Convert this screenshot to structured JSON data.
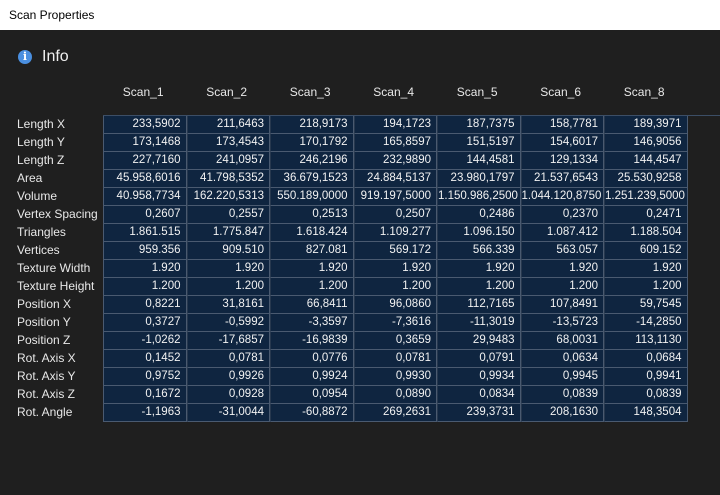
{
  "window": {
    "title": "Scan Properties"
  },
  "section": {
    "title": "Info",
    "icon": "info-icon"
  },
  "table": {
    "columns": [
      "Scan_1",
      "Scan_2",
      "Scan_3",
      "Scan_4",
      "Scan_5",
      "Scan_6",
      "Scan_8"
    ],
    "rows": [
      {
        "label": "Length X",
        "values": [
          "233,5902",
          "211,6463",
          "218,9173",
          "194,1723",
          "187,7375",
          "158,7781",
          "189,3971"
        ]
      },
      {
        "label": "Length Y",
        "values": [
          "173,1468",
          "173,4543",
          "170,1792",
          "165,8597",
          "151,5197",
          "154,6017",
          "146,9056"
        ]
      },
      {
        "label": "Length Z",
        "values": [
          "227,7160",
          "241,0957",
          "246,2196",
          "232,9890",
          "144,4581",
          "129,1334",
          "144,4547"
        ]
      },
      {
        "label": "Area",
        "values": [
          "45.958,6016",
          "41.798,5352",
          "36.679,1523",
          "24.884,5137",
          "23.980,1797",
          "21.537,6543",
          "25.530,9258"
        ]
      },
      {
        "label": "Volume",
        "values": [
          "40.958,7734",
          "162.220,5313",
          "550.189,0000",
          "919.197,5000",
          "1.150.986,2500",
          "1.044.120,8750",
          "1.251.239,5000"
        ]
      },
      {
        "label": "Vertex Spacing",
        "values": [
          "0,2607",
          "0,2557",
          "0,2513",
          "0,2507",
          "0,2486",
          "0,2370",
          "0,2471"
        ]
      },
      {
        "label": "Triangles",
        "values": [
          "1.861.515",
          "1.775.847",
          "1.618.424",
          "1.109.277",
          "1.096.150",
          "1.087.412",
          "1.188.504"
        ]
      },
      {
        "label": "Vertices",
        "values": [
          "959.356",
          "909.510",
          "827.081",
          "569.172",
          "566.339",
          "563.057",
          "609.152"
        ]
      },
      {
        "label": "Texture Width",
        "values": [
          "1.920",
          "1.920",
          "1.920",
          "1.920",
          "1.920",
          "1.920",
          "1.920"
        ]
      },
      {
        "label": "Texture Height",
        "values": [
          "1.200",
          "1.200",
          "1.200",
          "1.200",
          "1.200",
          "1.200",
          "1.200"
        ]
      },
      {
        "label": "Position X",
        "values": [
          "0,8221",
          "31,8161",
          "66,8411",
          "96,0860",
          "112,7165",
          "107,8491",
          "59,7545"
        ]
      },
      {
        "label": "Position Y",
        "values": [
          "0,3727",
          "-0,5992",
          "-3,3597",
          "-7,3616",
          "-11,3019",
          "-13,5723",
          "-14,2850"
        ]
      },
      {
        "label": "Position Z",
        "values": [
          "-1,0262",
          "-17,6857",
          "-16,9839",
          "0,3659",
          "29,9483",
          "68,0031",
          "113,1130"
        ]
      },
      {
        "label": "Rot. Axis X",
        "values": [
          "0,1452",
          "0,0781",
          "0,0776",
          "0,0781",
          "0,0791",
          "0,0634",
          "0,0684"
        ]
      },
      {
        "label": "Rot. Axis Y",
        "values": [
          "0,9752",
          "0,9926",
          "0,9924",
          "0,9930",
          "0,9934",
          "0,9945",
          "0,9941"
        ]
      },
      {
        "label": "Rot. Axis Z",
        "values": [
          "0,1672",
          "0,0928",
          "0,0954",
          "0,0890",
          "0,0834",
          "0,0839",
          "0,0839"
        ]
      },
      {
        "label": "Rot. Angle",
        "values": [
          "-1,1963",
          "-31,0044",
          "-60,8872",
          "269,2631",
          "239,3731",
          "208,1630",
          "148,3504"
        ]
      }
    ]
  },
  "colors": {
    "background": "#1f1f1f",
    "cell_background": "#0f2540",
    "cell_border": "#4a5a70",
    "icon_blue": "#4a8fe0"
  }
}
